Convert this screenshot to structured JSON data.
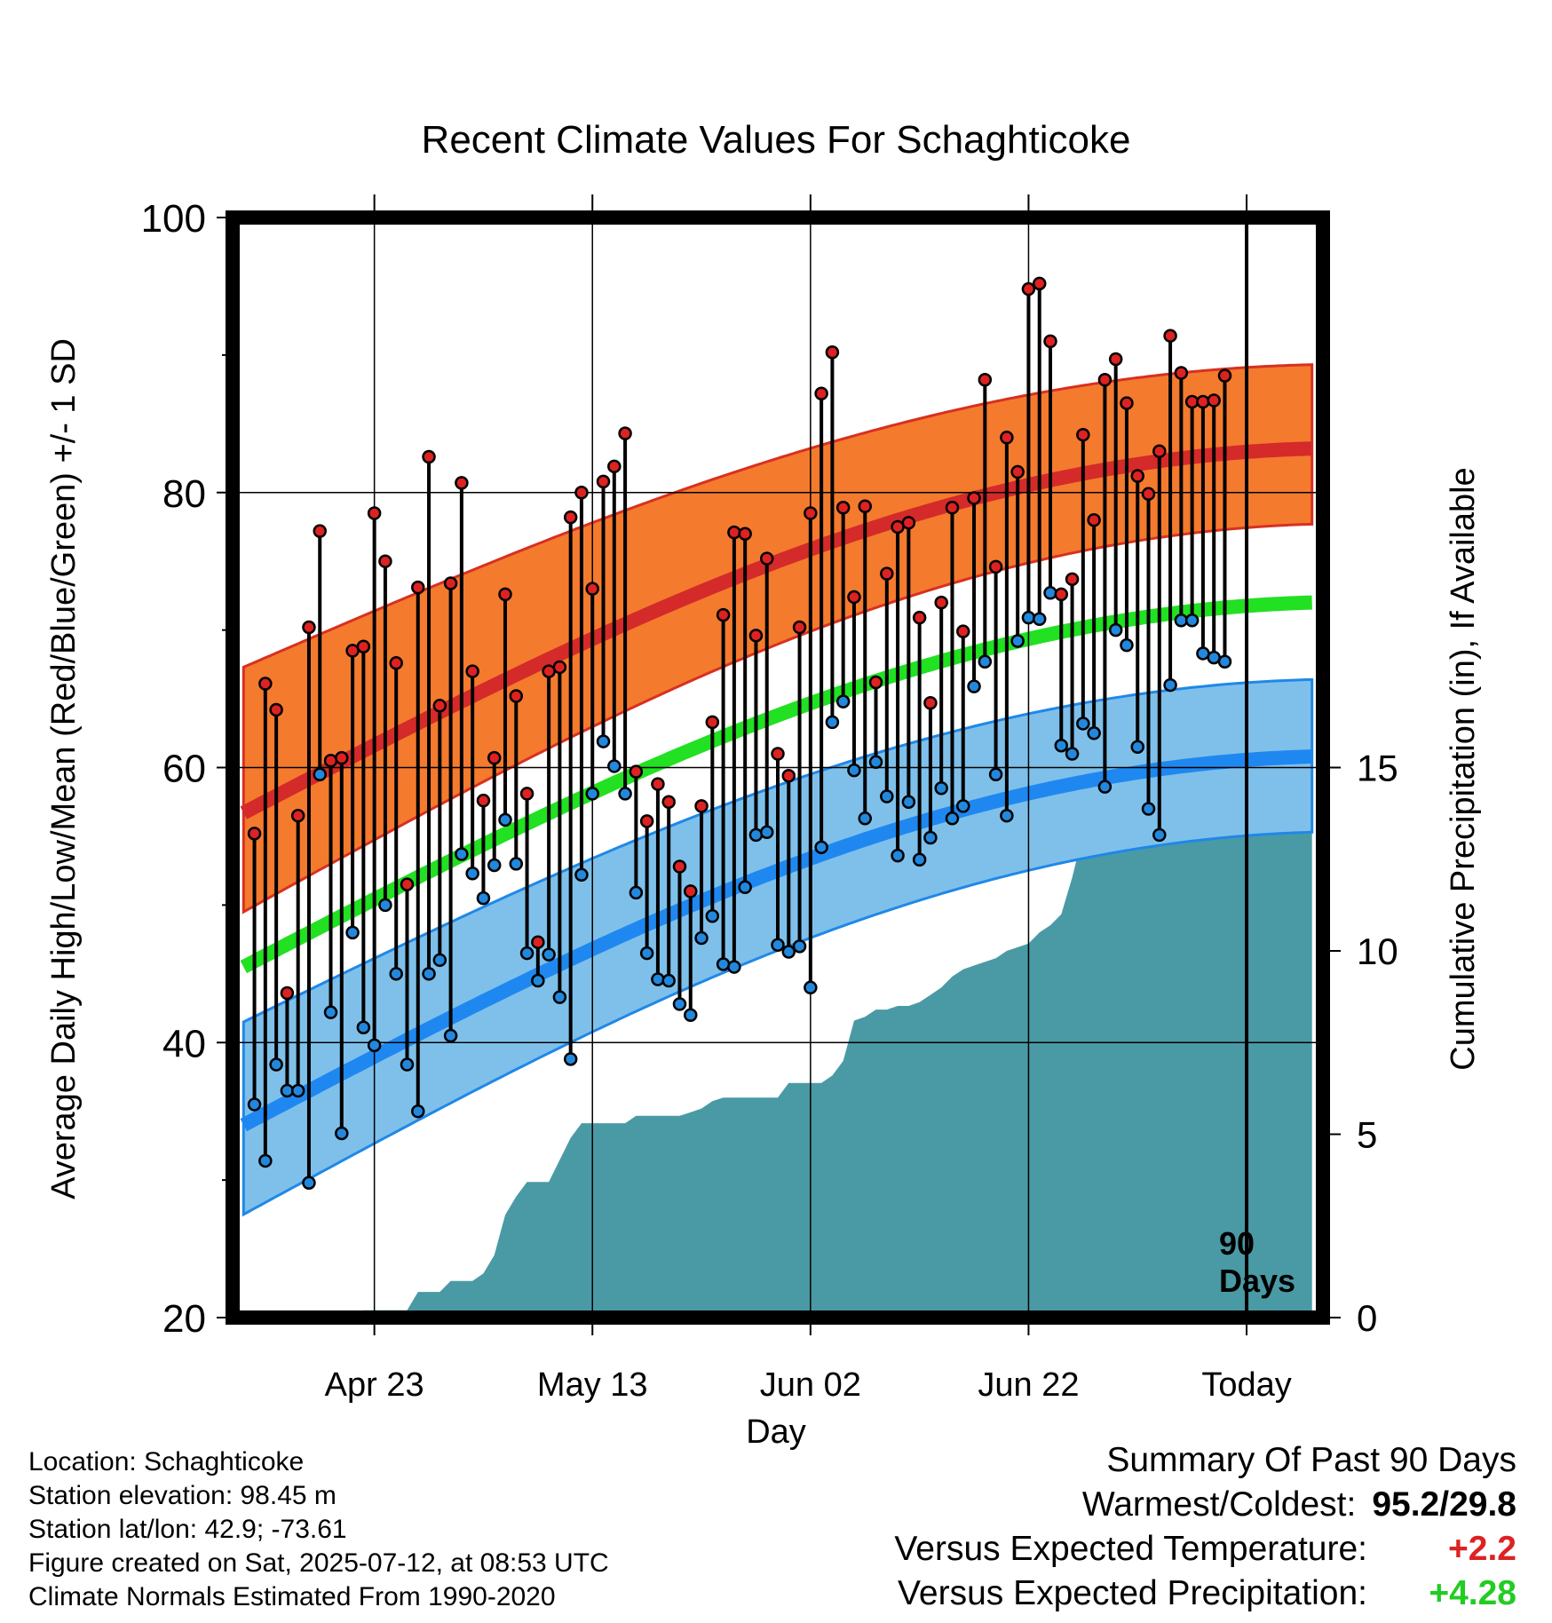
{
  "title": "Recent Climate Values For Schaghticoke",
  "y_left_label": "Average Daily High/Low/Mean (Red/Blue/Green) +/- 1 SD",
  "y_right_label": "Cumulative Precipitation (in), If Available",
  "x_label": "Day",
  "marker_label": "90 Days",
  "chart_data": {
    "type": "line",
    "title": "Recent Climate Values For Schaghticoke",
    "xlabel": "Day",
    "ylabel": "Average Daily High/Low/Mean (Red/Blue/Green) +/- 1 SD",
    "y2label": "Cumulative Precipitation (in), If Available",
    "x_range_days": [
      -91,
      9
    ],
    "ylim": [
      20,
      100
    ],
    "y2lim": [
      0,
      30
    ],
    "grid": true,
    "x_ticks": [
      {
        "day": -78,
        "label": "Apr 23"
      },
      {
        "day": -58,
        "label": "May 13"
      },
      {
        "day": -38,
        "label": "Jun 02"
      },
      {
        "day": -18,
        "label": "Jun 22"
      },
      {
        "day": 2,
        "label": "Today"
      }
    ],
    "y_ticks": [
      20,
      40,
      60,
      80,
      100
    ],
    "y2_ticks": [
      0,
      5,
      10,
      15
    ],
    "normals": {
      "high_mean_start": 56.7,
      "high_mean_end": 83.2,
      "high_sd_upper_start": 67.3,
      "high_sd_upper_end": 89.3,
      "high_sd_lower_start": 49.5,
      "high_sd_lower_end": 77.7,
      "mean_start": 45.5,
      "mean_end": 72.0,
      "low_mean_start": 34.0,
      "low_mean_end": 60.8,
      "low_sd_upper_start": 41.5,
      "low_sd_upper_end": 66.4,
      "low_sd_lower_start": 27.5,
      "low_sd_lower_end": 55.3
    },
    "series": [
      {
        "name": "High",
        "color": "#cc2222",
        "values": [
          55.2,
          66.1,
          64.2,
          43.6,
          56.5,
          70.2,
          77.2,
          60.5,
          60.7,
          68.5,
          68.8,
          78.5,
          75.0,
          67.6,
          51.5,
          73.1,
          82.6,
          64.5,
          73.4,
          80.7,
          67.0,
          57.6,
          60.7,
          72.6,
          65.2,
          58.1,
          47.3,
          67.0,
          67.3,
          78.2,
          80.0,
          73.0,
          80.8,
          81.9,
          84.3,
          59.7,
          56.1,
          58.8,
          57.5,
          52.8,
          51.0,
          57.2,
          63.3,
          71.1,
          77.1,
          77.0,
          69.6,
          75.2,
          61.0,
          59.4,
          70.2,
          78.5,
          87.2,
          90.2,
          78.9,
          72.4,
          79.0,
          66.2,
          74.1,
          77.5,
          77.8,
          70.9,
          64.7,
          72.0,
          78.9,
          69.9,
          79.6,
          88.2,
          74.6,
          84.0,
          81.5,
          94.8,
          95.2,
          91.0,
          72.6,
          73.7,
          84.2,
          78.0,
          88.2,
          89.7,
          86.5,
          81.2,
          79.9,
          83.0,
          91.4,
          88.7,
          86.6,
          86.6,
          86.7,
          88.5
        ]
      },
      {
        "name": "Low",
        "color": "#2288dd",
        "values": [
          35.5,
          31.4,
          38.4,
          36.5,
          36.5,
          29.8,
          59.5,
          42.2,
          33.4,
          48.0,
          41.1,
          39.8,
          50.0,
          45.0,
          38.4,
          35.0,
          45.0,
          46.0,
          40.5,
          53.7,
          52.3,
          50.5,
          52.9,
          56.2,
          53.0,
          46.5,
          44.5,
          46.4,
          43.3,
          38.8,
          52.2,
          58.1,
          61.9,
          60.1,
          58.1,
          50.9,
          46.5,
          44.6,
          44.5,
          42.8,
          42.0,
          47.6,
          49.2,
          45.7,
          45.5,
          51.3,
          55.1,
          55.3,
          47.1,
          46.6,
          47.0,
          44.0,
          54.2,
          63.3,
          64.8,
          59.8,
          56.3,
          60.4,
          57.9,
          53.6,
          57.5,
          53.3,
          54.9,
          58.5,
          56.3,
          57.2,
          65.9,
          67.7,
          59.5,
          56.5,
          69.2,
          70.9,
          70.8,
          72.7,
          61.6,
          61.0,
          63.2,
          62.5,
          58.6,
          70.0,
          68.9,
          61.5,
          57.0,
          55.1,
          66.0,
          70.7,
          70.7,
          68.3,
          68.0,
          67.7
        ]
      }
    ],
    "precip_cumulative": {
      "name": "Cumulative Precipitation",
      "color": "#4a9aa5",
      "values": [
        0.0,
        0.0,
        0.0,
        0.0,
        0.0,
        0.0,
        0.0,
        0.1,
        0.1,
        0.1,
        0.2,
        0.2,
        0.2,
        0.2,
        0.2,
        0.7,
        0.7,
        0.7,
        1.0,
        1.0,
        1.0,
        1.2,
        1.7,
        2.8,
        3.3,
        3.7,
        3.7,
        3.7,
        4.3,
        4.9,
        5.3,
        5.3,
        5.3,
        5.3,
        5.3,
        5.5,
        5.5,
        5.5,
        5.5,
        5.5,
        5.6,
        5.7,
        5.9,
        6.0,
        6.0,
        6.0,
        6.0,
        6.0,
        6.0,
        6.4,
        6.4,
        6.4,
        6.4,
        6.6,
        7.0,
        8.1,
        8.2,
        8.4,
        8.4,
        8.5,
        8.5,
        8.6,
        8.8,
        9.0,
        9.3,
        9.5,
        9.6,
        9.7,
        9.8,
        10.0,
        10.1,
        10.2,
        10.5,
        10.7,
        11.0,
        12.0,
        13.2,
        13.3,
        13.3,
        13.4,
        13.5,
        13.6,
        13.6,
        13.7,
        13.8,
        13.9,
        14.0,
        14.1,
        14.2,
        14.3
      ]
    }
  },
  "info_left": [
    "Location: Schaghticoke",
    "Station elevation: 98.45 m",
    "Station lat/lon: 42.9; -73.61",
    "Figure created on Sat, 2025-07-12, at 08:53 UTC",
    "Climate Normals Estimated From 1990-2020"
  ],
  "summary": {
    "heading": "Summary Of Past 90 Days",
    "warm_cold_label": "Warmest/Coldest:",
    "warm_cold_value": "95.2/29.8",
    "temp_label": "Versus Expected Temperature:",
    "temp_value": "+2.2",
    "temp_color": "#dd2222",
    "precip_label": "Versus Expected Precipitation:",
    "precip_value": "+4.28",
    "precip_color": "#22cc22"
  }
}
